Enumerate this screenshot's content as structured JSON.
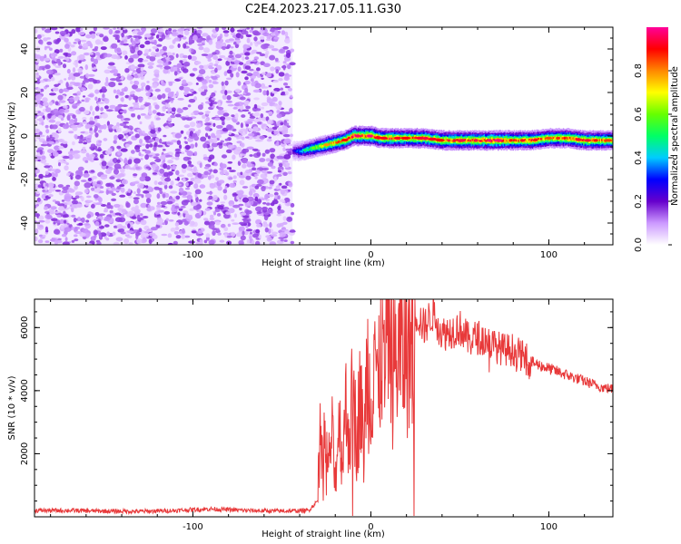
{
  "title": "C2E4.2023.217.05.11.G30",
  "chart_data": [
    {
      "type": "heatmap",
      "xlabel": "Height of straight line (km)",
      "ylabel": "Frequency (Hz)",
      "xlim": [
        -189,
        136
      ],
      "ylim": [
        -50,
        50
      ],
      "xticks": [
        -100,
        0,
        100
      ],
      "yticks": [
        -40,
        -20,
        0,
        20,
        40
      ],
      "grid": false,
      "noise_region_x": [
        -189,
        -44
      ],
      "ridge": {
        "x": [
          -44,
          -40,
          -35,
          -30,
          -25,
          -20,
          -15,
          -10,
          -5,
          0,
          5,
          10,
          20,
          30,
          40,
          50,
          60,
          70,
          80,
          90,
          100,
          110,
          120,
          136
        ],
        "freq": [
          -7,
          -7,
          -6,
          -5,
          -4,
          -3,
          -2,
          0,
          0,
          0,
          -1,
          -1,
          -1,
          -1,
          -2,
          -2,
          -2,
          -2,
          -2,
          -2,
          -1,
          -1,
          -2,
          -2
        ],
        "amplitude": [
          0.25,
          0.4,
          0.55,
          0.65,
          0.75,
          0.8,
          0.85,
          0.95,
          0.9,
          0.95,
          0.85,
          0.9,
          0.85,
          0.9,
          0.85,
          0.9,
          0.9,
          0.95,
          0.85,
          0.9,
          0.8,
          0.85,
          0.9,
          0.8
        ]
      },
      "colorbar": {
        "label": "Normalized spectral amplitude",
        "range": [
          0,
          1
        ],
        "ticks": [
          "0.0",
          "0.2",
          "0.4",
          "0.6",
          "0.8"
        ],
        "colors": [
          "#ffffff",
          "#cc99ff",
          "#6600cc",
          "#0000ff",
          "#00ccff",
          "#00ff66",
          "#66ff00",
          "#ffff00",
          "#ff8800",
          "#ff0000",
          "#ff0099"
        ]
      }
    },
    {
      "type": "line",
      "xlabel": "Height of straight line (km)",
      "ylabel": "SNR (10 * v/v)",
      "xlim": [
        -189,
        136
      ],
      "ylim": [
        0,
        6900
      ],
      "xticks": [
        -100,
        0,
        100
      ],
      "yticks": [
        2000,
        4000,
        6000
      ],
      "grid": false,
      "color": "#e8393a",
      "series": [
        {
          "x": [
            -189,
            -170,
            -150,
            -130,
            -110,
            -90,
            -70,
            -50,
            -35,
            -30,
            -29,
            -28,
            -26,
            -24,
            -22,
            -20,
            -18,
            -16,
            -14,
            -12,
            -10,
            -8,
            -6,
            -4,
            -2,
            0,
            2,
            4,
            6,
            8,
            10,
            12,
            15,
            20,
            25,
            30,
            35,
            40,
            45,
            50,
            55,
            60,
            65,
            70,
            75,
            80,
            85,
            90,
            95,
            100,
            105,
            110,
            115,
            120,
            125,
            130,
            136
          ],
          "y": [
            200,
            200,
            180,
            170,
            200,
            250,
            200,
            180,
            200,
            500,
            2800,
            1900,
            2500,
            1500,
            2700,
            1100,
            3100,
            1900,
            3400,
            2600,
            4100,
            2300,
            4000,
            2000,
            5000,
            3400,
            6300,
            3500,
            6000,
            4300,
            6700,
            4600,
            5200,
            5300,
            6500,
            6000,
            6500,
            5800,
            5900,
            6000,
            5600,
            5700,
            5600,
            5400,
            5300,
            5300,
            5100,
            4900,
            4800,
            4700,
            4600,
            4500,
            4400,
            4300,
            4200,
            4100,
            4050
          ]
        }
      ]
    }
  ]
}
